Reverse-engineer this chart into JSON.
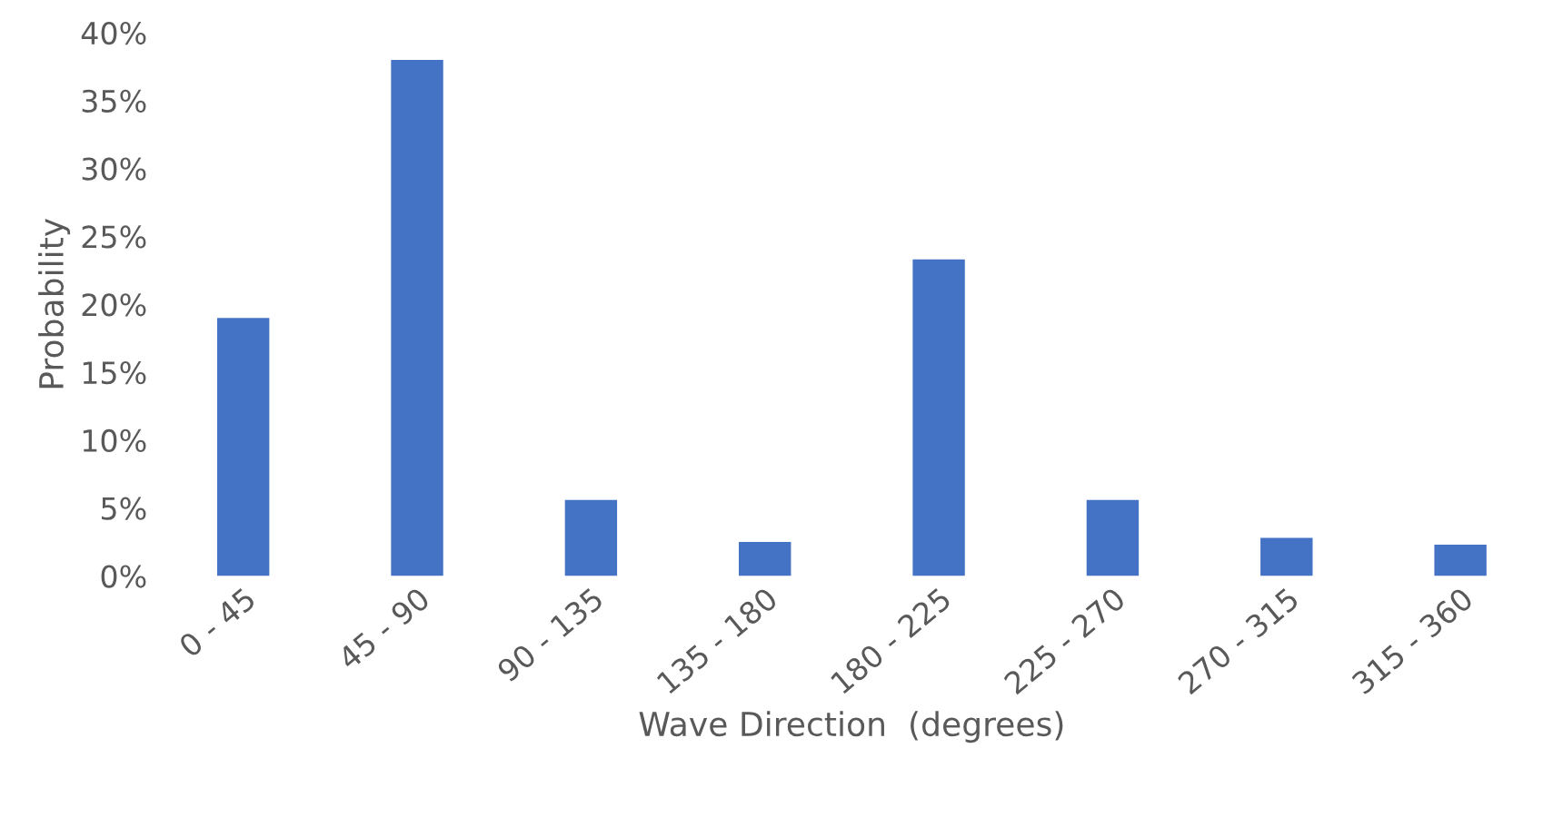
{
  "chart_data": {
    "type": "bar",
    "xlabel": "Wave Direction  (degrees)",
    "ylabel": "Probability",
    "categories": [
      "0 - 45",
      "45 - 90",
      "90 - 135",
      "135 - 180",
      "180 - 225",
      "225 - 270",
      "270 - 315",
      "315 - 360"
    ],
    "values": [
      19,
      38,
      5.6,
      2.5,
      23.3,
      5.6,
      2.8,
      2.3
    ],
    "color": "#4472c4",
    "ylim": [
      0,
      40
    ],
    "yticks": [
      {
        "value": 0,
        "label": "0%"
      },
      {
        "value": 5,
        "label": "5%"
      },
      {
        "value": 10,
        "label": "10%"
      },
      {
        "value": 15,
        "label": "15%"
      },
      {
        "value": 20,
        "label": "20%"
      },
      {
        "value": 25,
        "label": "25%"
      },
      {
        "value": 30,
        "label": "30%"
      },
      {
        "value": 35,
        "label": "35%"
      },
      {
        "value": 40,
        "label": "40%"
      }
    ],
    "grid": false
  }
}
